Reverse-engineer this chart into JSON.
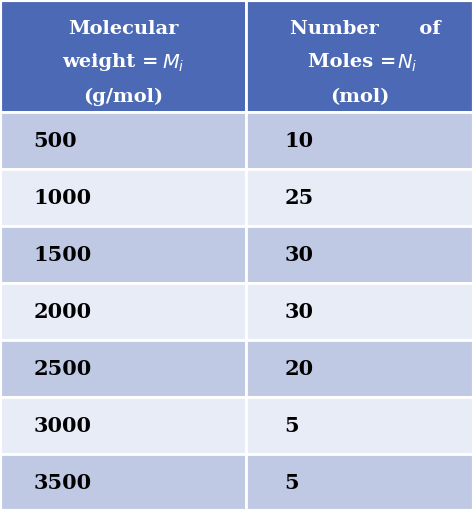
{
  "col1_header_line1": "Molecular",
  "col1_header_line2": "weight = ",
  "col1_header_line2_italic": "M",
  "col1_header_line2_italic_sub": "i",
  "col1_header_line3": "(g/mol)",
  "col2_header_line1": "Number      of",
  "col2_header_line2": "Moles = ",
  "col2_header_line2_italic": "N",
  "col2_header_line2_italic_sub": "i",
  "col2_header_line3": "(mol)",
  "col1_values": [
    "500",
    "1000",
    "1500",
    "2000",
    "2500",
    "3000",
    "3500"
  ],
  "col2_values": [
    "10",
    "25",
    "30",
    "30",
    "20",
    "5",
    "5"
  ],
  "header_bg_color": "#4B69B5",
  "header_text_color": "#FFFFFF",
  "row_colors_odd": "#BFC9E4",
  "row_colors_even": "#E8ECF7",
  "data_text_color": "#000000",
  "border_color": "#FFFFFF",
  "figsize": [
    4.74,
    5.11
  ],
  "dpi": 100
}
